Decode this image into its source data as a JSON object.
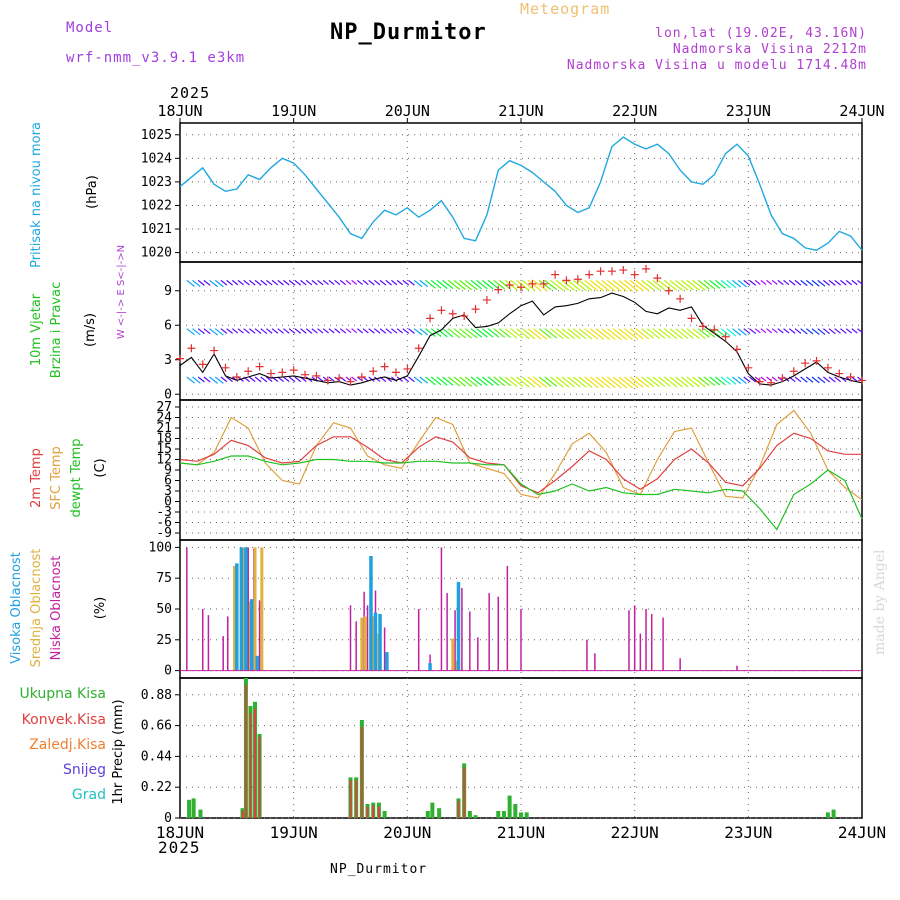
{
  "header": {
    "model_label": "Model",
    "model_name": "wrf-nmm_v3.9.1 e3km",
    "meteogram_label": "Meteogram",
    "title": "NP_Durmitor",
    "coords": "lon,lat (19.02E, 43.16N)",
    "elevation": "Nadmorska Visina 2212m",
    "model_elevation": "Nadmorska Visina u modelu 1714.48m"
  },
  "footer": {
    "station": "NP_Durmitor",
    "credit": "made by Angel"
  },
  "colors": {
    "pressure": "#20a8e0",
    "wind_speed": "#000000",
    "wind_gust": "#e03030",
    "t2m": "#e04040",
    "tsfc": "#e0a040",
    "dewpt": "#20c020",
    "high_cloud": "#20a0e0",
    "mid_cloud": "#e0b040",
    "low_cloud": "#c020a0",
    "total_precip": "#30b030",
    "conv_precip": "#e04040",
    "frozen_precip": "#f08030",
    "snow": "#6040e0",
    "graupel": "#20c0c0",
    "grid": "#666666"
  },
  "time_axis": {
    "year": "2025",
    "ticks": [
      "18JUN",
      "19JUN",
      "20JUN",
      "21JUN",
      "22JUN",
      "23JUN",
      "24JUN"
    ],
    "days_range": [
      0,
      6
    ]
  },
  "chart_data": [
    {
      "type": "line",
      "title": "Pressure",
      "ylabel_main": "Pritisak na nivou mora",
      "ylabel_unit": "(hPa)",
      "ylim": [
        1019.6,
        1025.5
      ],
      "yticks": [
        "1020",
        "1021",
        "1022",
        "1023",
        "1024",
        "1025"
      ],
      "series": [
        {
          "name": "pressure",
          "x": [
            0,
            0.1,
            0.2,
            0.3,
            0.4,
            0.5,
            0.6,
            0.7,
            0.8,
            0.9,
            1.0,
            1.1,
            1.2,
            1.3,
            1.4,
            1.5,
            1.6,
            1.7,
            1.8,
            1.9,
            2.0,
            2.1,
            2.2,
            2.3,
            2.4,
            2.5,
            2.6,
            2.7,
            2.8,
            2.9,
            3.0,
            3.1,
            3.2,
            3.3,
            3.4,
            3.5,
            3.6,
            3.7,
            3.8,
            3.9,
            4.0,
            4.1,
            4.2,
            4.3,
            4.4,
            4.5,
            4.6,
            4.7,
            4.8,
            4.9,
            5.0,
            5.1,
            5.2,
            5.3,
            5.4,
            5.5,
            5.6,
            5.7,
            5.8,
            5.9,
            6.0
          ],
          "values": [
            1022.8,
            1023.2,
            1023.6,
            1022.9,
            1022.6,
            1022.7,
            1023.3,
            1023.1,
            1023.6,
            1024.0,
            1023.8,
            1023.3,
            1022.7,
            1022.1,
            1021.5,
            1020.8,
            1020.6,
            1021.3,
            1021.8,
            1021.6,
            1021.9,
            1021.5,
            1021.8,
            1022.2,
            1021.5,
            1020.6,
            1020.5,
            1021.6,
            1023.5,
            1023.9,
            1023.7,
            1023.4,
            1023.0,
            1022.6,
            1022.0,
            1021.7,
            1021.9,
            1023.0,
            1024.5,
            1024.9,
            1024.6,
            1024.4,
            1024.6,
            1024.2,
            1023.5,
            1023.0,
            1022.9,
            1023.3,
            1024.2,
            1024.6,
            1024.1,
            1022.9,
            1021.6,
            1020.8,
            1020.6,
            1020.2,
            1020.1,
            1020.4,
            1020.9,
            1020.7,
            1020.1
          ]
        }
      ]
    },
    {
      "type": "line",
      "title": "Wind",
      "ylabel_main": "10m Vjetar",
      "ylabel_sub": "Brzina i Pravac",
      "ylabel_unit": "(m/s)",
      "compass_label": "W <-|-> E  S<-|->N",
      "ylim": [
        -0.5,
        11.5
      ],
      "yticks": [
        "0",
        "3",
        "6",
        "9"
      ],
      "wind_barb_levels": [
        1.5,
        5.7,
        9.9
      ],
      "series": [
        {
          "name": "speed",
          "x": [
            0,
            0.1,
            0.2,
            0.3,
            0.4,
            0.5,
            0.6,
            0.7,
            0.8,
            0.9,
            1.0,
            1.1,
            1.2,
            1.3,
            1.4,
            1.5,
            1.6,
            1.7,
            1.8,
            1.9,
            2.0,
            2.1,
            2.2,
            2.3,
            2.4,
            2.5,
            2.6,
            2.7,
            2.8,
            2.9,
            3.0,
            3.1,
            3.2,
            3.3,
            3.4,
            3.5,
            3.6,
            3.7,
            3.8,
            3.9,
            4.0,
            4.1,
            4.2,
            4.3,
            4.4,
            4.5,
            4.6,
            4.7,
            4.8,
            4.9,
            5.0,
            5.1,
            5.2,
            5.3,
            5.4,
            5.5,
            5.6,
            5.7,
            5.8,
            5.9,
            6.0
          ],
          "values": [
            2.5,
            3.2,
            1.9,
            3.5,
            1.6,
            1.2,
            1.5,
            1.8,
            1.4,
            1.5,
            1.6,
            1.4,
            1.2,
            1.0,
            1.1,
            0.8,
            1.0,
            1.3,
            1.5,
            1.2,
            1.6,
            3.3,
            5.1,
            5.6,
            6.6,
            6.9,
            5.8,
            5.9,
            6.2,
            7.0,
            7.7,
            8.1,
            6.9,
            7.6,
            7.7,
            7.9,
            8.3,
            8.4,
            8.8,
            8.5,
            8.0,
            7.2,
            7.0,
            7.5,
            7.3,
            7.6,
            6.0,
            5.3,
            4.6,
            3.7,
            1.8,
            0.9,
            0.8,
            1.1,
            1.6,
            2.2,
            2.8,
            1.9,
            1.5,
            1.2,
            1.0
          ]
        },
        {
          "name": "gust",
          "x": [
            0,
            0.1,
            0.2,
            0.3,
            0.4,
            0.5,
            0.6,
            0.7,
            0.8,
            0.9,
            1.0,
            1.1,
            1.2,
            1.3,
            1.4,
            1.5,
            1.6,
            1.7,
            1.8,
            1.9,
            2.0,
            2.1,
            2.2,
            2.3,
            2.4,
            2.5,
            2.6,
            2.7,
            2.8,
            2.9,
            3.0,
            3.1,
            3.2,
            3.3,
            3.4,
            3.5,
            3.6,
            3.7,
            3.8,
            3.9,
            4.0,
            4.1,
            4.2,
            4.3,
            4.4,
            4.5,
            4.6,
            4.7,
            4.8,
            4.9,
            5.0,
            5.1,
            5.2,
            5.3,
            5.4,
            5.5,
            5.6,
            5.7,
            5.8,
            5.9,
            6.0
          ],
          "values": [
            3.1,
            4.0,
            2.6,
            3.8,
            2.3,
            1.5,
            2.0,
            2.4,
            1.8,
            1.9,
            2.1,
            1.7,
            1.6,
            1.2,
            1.4,
            1.1,
            1.5,
            2.0,
            2.4,
            1.9,
            2.2,
            4.0,
            6.6,
            7.3,
            7.0,
            6.8,
            7.4,
            8.2,
            9.1,
            9.5,
            9.3,
            9.6,
            9.6,
            10.4,
            9.9,
            10.0,
            10.4,
            10.7,
            10.7,
            10.8,
            10.4,
            10.9,
            10.1,
            9.0,
            8.3,
            6.6,
            5.9,
            5.6,
            5.0,
            3.9,
            2.3,
            1.1,
            1.0,
            1.4,
            2.0,
            2.7,
            2.9,
            2.3,
            1.8,
            1.5,
            1.2
          ]
        }
      ]
    },
    {
      "type": "line",
      "title": "Temperature",
      "ylabel_2m": "2m Temp",
      "ylabel_sfc": "SFC Temp",
      "ylabel_dewpt": "dewpt Temp",
      "ylabel_unit": "(C)",
      "ylim": [
        -11,
        29
      ],
      "yticks": [
        "-9",
        "-6",
        "-3",
        "0",
        "3",
        "6",
        "9",
        "12",
        "15",
        "18",
        "21",
        "24",
        "27"
      ],
      "series": [
        {
          "name": "t2m",
          "x": [
            0,
            0.15,
            0.3,
            0.45,
            0.6,
            0.75,
            0.9,
            1.05,
            1.2,
            1.35,
            1.5,
            1.65,
            1.8,
            1.95,
            2.1,
            2.25,
            2.4,
            2.55,
            2.7,
            2.85,
            3.0,
            3.15,
            3.3,
            3.45,
            3.6,
            3.75,
            3.9,
            4.05,
            4.2,
            4.35,
            4.5,
            4.65,
            4.8,
            4.95,
            5.1,
            5.25,
            5.4,
            5.55,
            5.7,
            5.85,
            6.0
          ],
          "values": [
            12,
            11.5,
            13.5,
            17.5,
            16,
            12.5,
            11,
            11.5,
            16,
            18.5,
            18.5,
            15.5,
            12,
            11,
            15.5,
            18.5,
            17,
            12.5,
            11,
            10.5,
            4.5,
            2.5,
            6,
            10,
            14.5,
            12,
            6.5,
            3.5,
            6.5,
            12,
            15,
            11,
            5.5,
            4.5,
            9.5,
            16,
            19.5,
            18,
            14.5,
            13.5,
            13.5
          ]
        },
        {
          "name": "tsfc",
          "x": [
            0,
            0.15,
            0.3,
            0.45,
            0.6,
            0.75,
            0.9,
            1.05,
            1.2,
            1.35,
            1.5,
            1.65,
            1.8,
            1.95,
            2.1,
            2.25,
            2.4,
            2.55,
            2.7,
            2.85,
            3.0,
            3.15,
            3.3,
            3.45,
            3.6,
            3.75,
            3.9,
            4.05,
            4.2,
            4.35,
            4.5,
            4.65,
            4.8,
            4.95,
            5.1,
            5.25,
            5.4,
            5.55,
            5.7,
            5.85,
            6.0
          ],
          "values": [
            11,
            10.5,
            14,
            24,
            21,
            11,
            6,
            5,
            16,
            22.5,
            21,
            13,
            10.5,
            9.5,
            17,
            24,
            22,
            11,
            9.5,
            8,
            2,
            1,
            8,
            16.5,
            19.5,
            14,
            4,
            2,
            12,
            20,
            21,
            11,
            1.5,
            1,
            10,
            22,
            26,
            19.5,
            9,
            4,
            0.5
          ]
        },
        {
          "name": "dewpt",
          "x": [
            0,
            0.15,
            0.3,
            0.45,
            0.6,
            0.75,
            0.9,
            1.05,
            1.2,
            1.35,
            1.5,
            1.65,
            1.8,
            1.95,
            2.1,
            2.25,
            2.4,
            2.55,
            2.7,
            2.85,
            3.0,
            3.15,
            3.3,
            3.45,
            3.6,
            3.75,
            3.9,
            4.05,
            4.2,
            4.35,
            4.5,
            4.65,
            4.8,
            4.95,
            5.1,
            5.25,
            5.4,
            5.55,
            5.7,
            5.85,
            6.0
          ],
          "values": [
            11,
            10.5,
            11.5,
            13,
            13,
            11.5,
            10.5,
            11,
            12,
            12,
            11.5,
            11.5,
            11,
            11,
            11.5,
            11.5,
            11,
            11,
            10.5,
            10.5,
            5,
            2,
            3,
            5,
            3,
            4,
            2.5,
            2,
            2,
            3.5,
            3,
            2.5,
            3.5,
            3,
            -2,
            -8,
            2,
            5,
            9,
            6,
            -5
          ]
        }
      ]
    },
    {
      "type": "bar",
      "title": "Clouds",
      "ylabel_high": "Visoka Oblacnost",
      "ylabel_mid": "Srednja Oblacnost",
      "ylabel_low": "Niska Oblacnost",
      "ylabel_unit": "(%)",
      "ylim": [
        0,
        100
      ],
      "yticks": [
        "0",
        "25",
        "50",
        "75",
        "100"
      ],
      "series": [
        {
          "name": "low",
          "x": [
            0.06,
            0.2,
            0.25,
            0.38,
            0.42,
            0.5,
            0.6,
            0.65,
            0.7,
            1.5,
            1.55,
            1.62,
            1.65,
            1.72,
            1.8,
            2.1,
            2.2,
            2.3,
            2.35,
            2.42,
            2.48,
            2.55,
            2.62,
            2.72,
            2.8,
            2.88,
            3.0,
            3.58,
            3.65,
            3.95,
            4.0,
            4.05,
            4.1,
            4.15,
            4.25,
            4.4,
            4.9
          ],
          "values": [
            100,
            50,
            45,
            28,
            44,
            55,
            100,
            99,
            57,
            53,
            40,
            64,
            53,
            65,
            35,
            50,
            13,
            100,
            63,
            49,
            67,
            48,
            27,
            63,
            60,
            85,
            50,
            25,
            14,
            49,
            53,
            30,
            50,
            46,
            43,
            10,
            4
          ]
        },
        {
          "name": "mid",
          "x": [
            0.48,
            0.56,
            0.62,
            0.66,
            0.72,
            1.6,
            1.63,
            1.7,
            1.75,
            2.4,
            2.44
          ],
          "values": [
            85,
            100,
            56,
            100,
            100,
            43,
            44,
            44,
            30,
            26,
            8
          ]
        },
        {
          "name": "high",
          "x": [
            0.5,
            0.54,
            0.58,
            0.63,
            0.68,
            1.68,
            1.72,
            1.76,
            1.82,
            2.2,
            2.45
          ],
          "values": [
            87,
            100,
            100,
            58,
            12,
            93,
            47,
            46,
            15,
            6,
            72
          ]
        }
      ]
    },
    {
      "type": "bar",
      "title": "Precipitation",
      "ylabel_total": "Ukupna Kisa",
      "ylabel_conv": "Konvek.Kisa",
      "ylabel_frozen": "Zaledj.Kisa",
      "ylabel_snow": "Snijeg",
      "ylabel_graupel": "Grad",
      "ylabel_unit": "1hr Precip (mm)",
      "ylim": [
        0,
        1.0
      ],
      "yticks": [
        "0",
        "0.22",
        "0.44",
        "0.66",
        "0.88"
      ],
      "series": [
        {
          "name": "total",
          "x": [
            0.08,
            0.12,
            0.18,
            0.55,
            0.58,
            0.62,
            0.66,
            0.7,
            1.5,
            1.55,
            1.6,
            1.65,
            1.7,
            1.75,
            1.8,
            2.18,
            2.22,
            2.28,
            2.45,
            2.5,
            2.55,
            2.6,
            2.8,
            2.85,
            2.9,
            2.95,
            3.0,
            3.05,
            5.7,
            5.75
          ],
          "values": [
            0.13,
            0.14,
            0.06,
            0.07,
            1.0,
            0.8,
            0.83,
            0.6,
            0.29,
            0.29,
            0.7,
            0.1,
            0.11,
            0.11,
            0.05,
            0.05,
            0.11,
            0.07,
            0.14,
            0.39,
            0.05,
            0.02,
            0.05,
            0.05,
            0.16,
            0.1,
            0.04,
            0.04,
            0.04,
            0.06
          ]
        },
        {
          "name": "conv",
          "x": [
            0.55,
            0.58,
            0.62,
            0.66,
            0.7,
            1.5,
            1.55,
            1.6,
            1.65,
            1.7,
            1.75,
            2.45,
            2.5
          ],
          "values": [
            0.05,
            0.95,
            0.75,
            0.78,
            0.58,
            0.27,
            0.27,
            0.65,
            0.08,
            0.09,
            0.08,
            0.12,
            0.36
          ]
        }
      ]
    }
  ]
}
